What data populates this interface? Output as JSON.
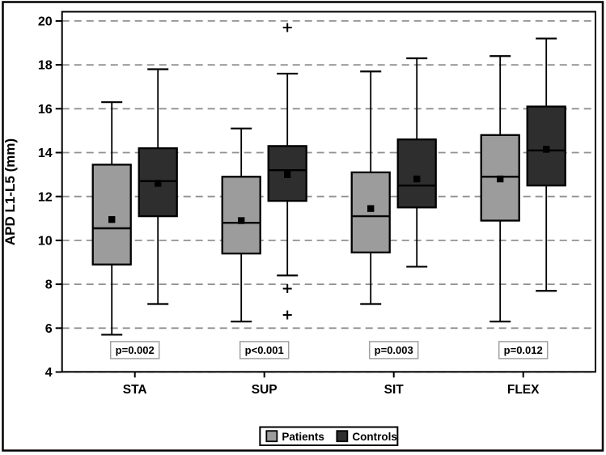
{
  "figure": {
    "background": "#ffffff",
    "border_color": "#000000"
  },
  "chart_data": {
    "type": "boxplot",
    "title": "",
    "xlabel": "",
    "ylabel": "APD L1-L5 (mm)",
    "ylim": [
      4,
      20.6
    ],
    "yticks": [
      4,
      6,
      8,
      10,
      12,
      14,
      16,
      18,
      20
    ],
    "grid": "horizontal-dashed",
    "categories": [
      "STA",
      "SUP",
      "SIT",
      "FLEX"
    ],
    "series": [
      {
        "name": "Patients",
        "color": "#9c9c9c",
        "boxes": [
          {
            "whisker_low": 5.7,
            "q1": 8.9,
            "median": 10.55,
            "mean": 10.95,
            "q3": 13.45,
            "whisker_high": 16.3,
            "outliers": []
          },
          {
            "whisker_low": 6.3,
            "q1": 9.4,
            "median": 10.8,
            "mean": 10.9,
            "q3": 12.9,
            "whisker_high": 15.1,
            "outliers": []
          },
          {
            "whisker_low": 7.1,
            "q1": 9.45,
            "median": 11.1,
            "mean": 11.45,
            "q3": 13.1,
            "whisker_high": 17.7,
            "outliers": []
          },
          {
            "whisker_low": 6.3,
            "q1": 10.9,
            "median": 12.9,
            "mean": 12.8,
            "q3": 14.8,
            "whisker_high": 18.4,
            "outliers": []
          }
        ]
      },
      {
        "name": "Controls",
        "color": "#2e2e2e",
        "boxes": [
          {
            "whisker_low": 7.1,
            "q1": 11.1,
            "median": 12.7,
            "mean": 12.6,
            "q3": 14.2,
            "whisker_high": 17.8,
            "outliers": []
          },
          {
            "whisker_low": 8.4,
            "q1": 11.8,
            "median": 13.2,
            "mean": 13.0,
            "q3": 14.3,
            "whisker_high": 17.6,
            "outliers": [
              19.7,
              7.8,
              6.6
            ]
          },
          {
            "whisker_low": 8.8,
            "q1": 11.5,
            "median": 12.5,
            "mean": 12.8,
            "q3": 14.6,
            "whisker_high": 18.3,
            "outliers": []
          },
          {
            "whisker_low": 7.7,
            "q1": 12.5,
            "median": 14.1,
            "mean": 14.15,
            "q3": 16.1,
            "whisker_high": 19.2,
            "outliers": []
          }
        ]
      }
    ],
    "annotations": {
      "p_values": [
        "p=0.002",
        "p<0.001",
        "p=0.003",
        "p=0.012"
      ],
      "p_value_y": 5.0
    },
    "markers": {
      "mean_marker": "black-square",
      "outlier_marker": "plus"
    },
    "legend": {
      "position": "bottom-center",
      "entries": [
        "Patients",
        "Controls"
      ]
    },
    "colors": {
      "grid": "#909090",
      "axis": "#000000",
      "background": "#ffffff",
      "p_box_border": "#a0a0a0",
      "p_box_fill": "#ffffff"
    }
  }
}
